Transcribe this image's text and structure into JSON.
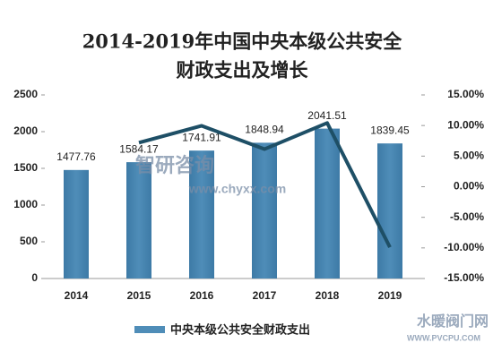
{
  "chart_data": {
    "type": "bar_line",
    "title": [
      "2014-2019年中国中央本级公共安全",
      "财政支出及增长"
    ],
    "categories": [
      "2014",
      "2015",
      "2016",
      "2017",
      "2018",
      "2019"
    ],
    "series": [
      {
        "name": "中央本级公共安全财政支出",
        "color": "#4f8db8",
        "values": [
          1477.76,
          1584.17,
          1741.91,
          1848.94,
          2041.51,
          1839.45
        ]
      },
      {
        "color": "#1e4f66",
        "axis": "y2",
        "values": [
          null,
          7.2,
          9.96,
          6.14,
          10.42,
          -9.9
        ]
      }
    ],
    "ylim": [
      0,
      2500
    ],
    "yticks": [
      0,
      500,
      1000,
      1500,
      2000,
      2500
    ],
    "y2lim": [
      -15,
      15
    ],
    "y2ticks": [
      {
        "value": -15,
        "label": "-15.00%"
      },
      {
        "value": -10,
        "label": "-10.00%"
      },
      {
        "value": -5,
        "label": "-5.00%"
      },
      {
        "value": 0,
        "label": "0.00%"
      },
      {
        "value": 5,
        "label": "5.00%"
      },
      {
        "value": 10,
        "label": "10.00%"
      },
      {
        "value": 15,
        "label": "15.00%"
      }
    ],
    "watermarks": [
      "智研咨询",
      "www.chyxx.com",
      "水暖阀门网",
      "WWW.PVCPU.COM"
    ]
  }
}
